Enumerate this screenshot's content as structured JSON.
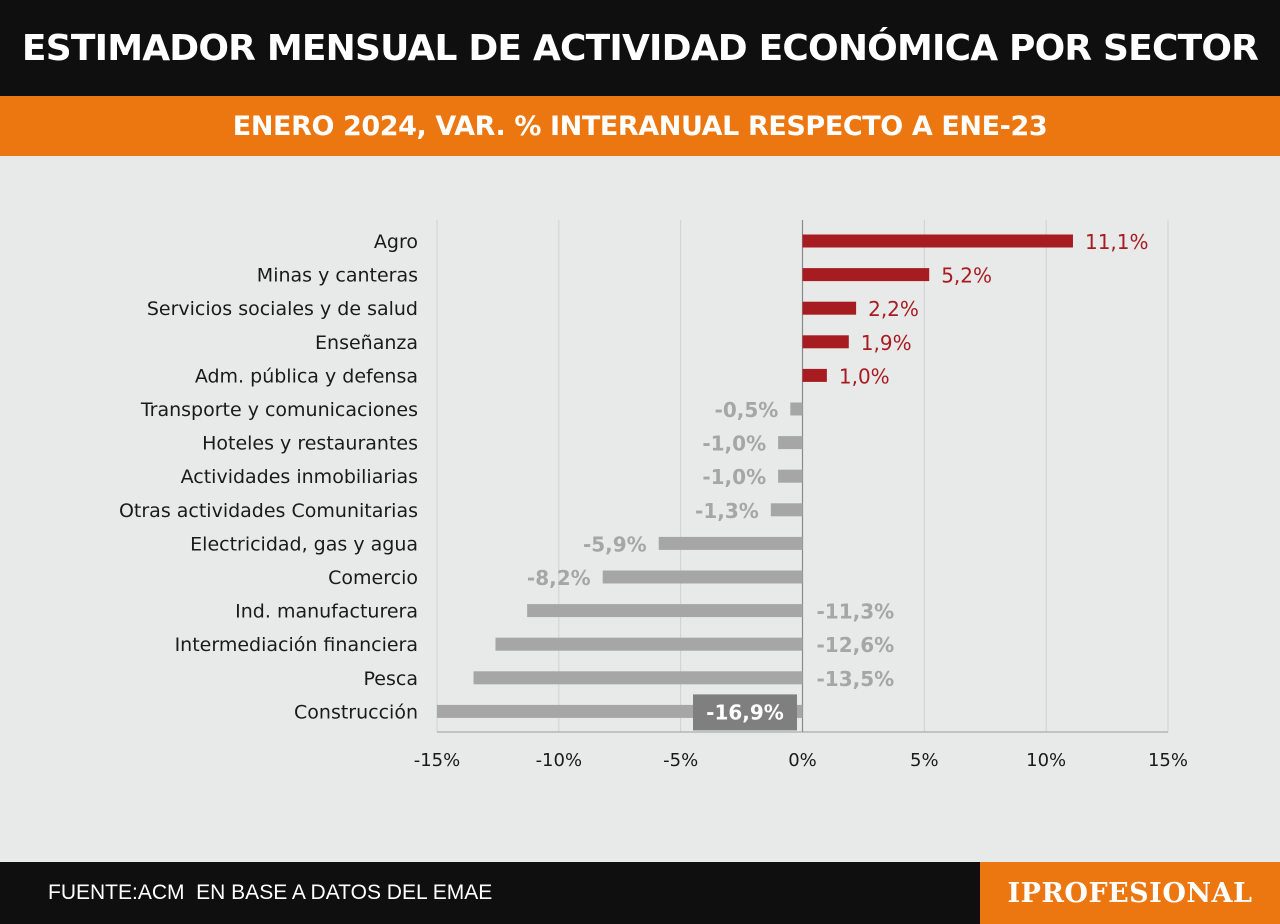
{
  "header": {
    "title": "ESTIMADOR MENSUAL DE ACTIVIDAD ECONÓMICA  POR SECTOR"
  },
  "subheader": {
    "title": "ENERO 2024, VAR. % INTERANUAL RESPECTO A ENE-23"
  },
  "footer": {
    "source": "FUENTE:ACM  EN BASE A DATOS DEL EMAE",
    "brand": "IPROFESIONAL"
  },
  "colors": {
    "header_bg": "#0f0f10",
    "accent_orange": "#ec7711",
    "positive_bar": "#a71c20",
    "negative_bar": "#a6a6a6",
    "negative_label": "#a6a6a6",
    "background": "#e8e9e9"
  },
  "chart_data": {
    "type": "bar",
    "orientation": "horizontal",
    "categories": [
      "Agro",
      "Minas y canteras",
      "Servicios sociales y de salud",
      "Enseñanza",
      "Adm. pública y defensa",
      "Transporte y comunicaciones",
      "Hoteles y restaurantes",
      "Actividades inmobiliarias",
      "Otras actividades Comunitarias",
      "Electricidad, gas y agua",
      "Comercio",
      "Ind. manufacturera",
      "Intermediación financiera",
      "Pesca",
      "Construcción"
    ],
    "values": [
      11.1,
      5.2,
      2.2,
      1.9,
      1.0,
      -0.5,
      -1.0,
      -1.0,
      -1.3,
      -5.9,
      -8.2,
      -11.3,
      -12.6,
      -13.5,
      -16.9
    ],
    "value_labels": [
      "11,1%",
      "5,2%",
      "2,2%",
      "1,9%",
      "1,0%",
      "-0,5%",
      "-1,0%",
      "-1,0%",
      "-1,3%",
      "-5,9%",
      "-8,2%",
      "-11,3%",
      "-12,6%",
      "-13,5%",
      "-16,9%"
    ],
    "xlim": [
      -15,
      15
    ],
    "xticks": [
      -15,
      -10,
      -5,
      0,
      5,
      10,
      15
    ],
    "xtick_labels": [
      "-15%",
      "-10%",
      "-5%",
      "0%",
      "5%",
      "10%",
      "15%"
    ],
    "grid": true,
    "xlabel": "",
    "ylabel": ""
  }
}
